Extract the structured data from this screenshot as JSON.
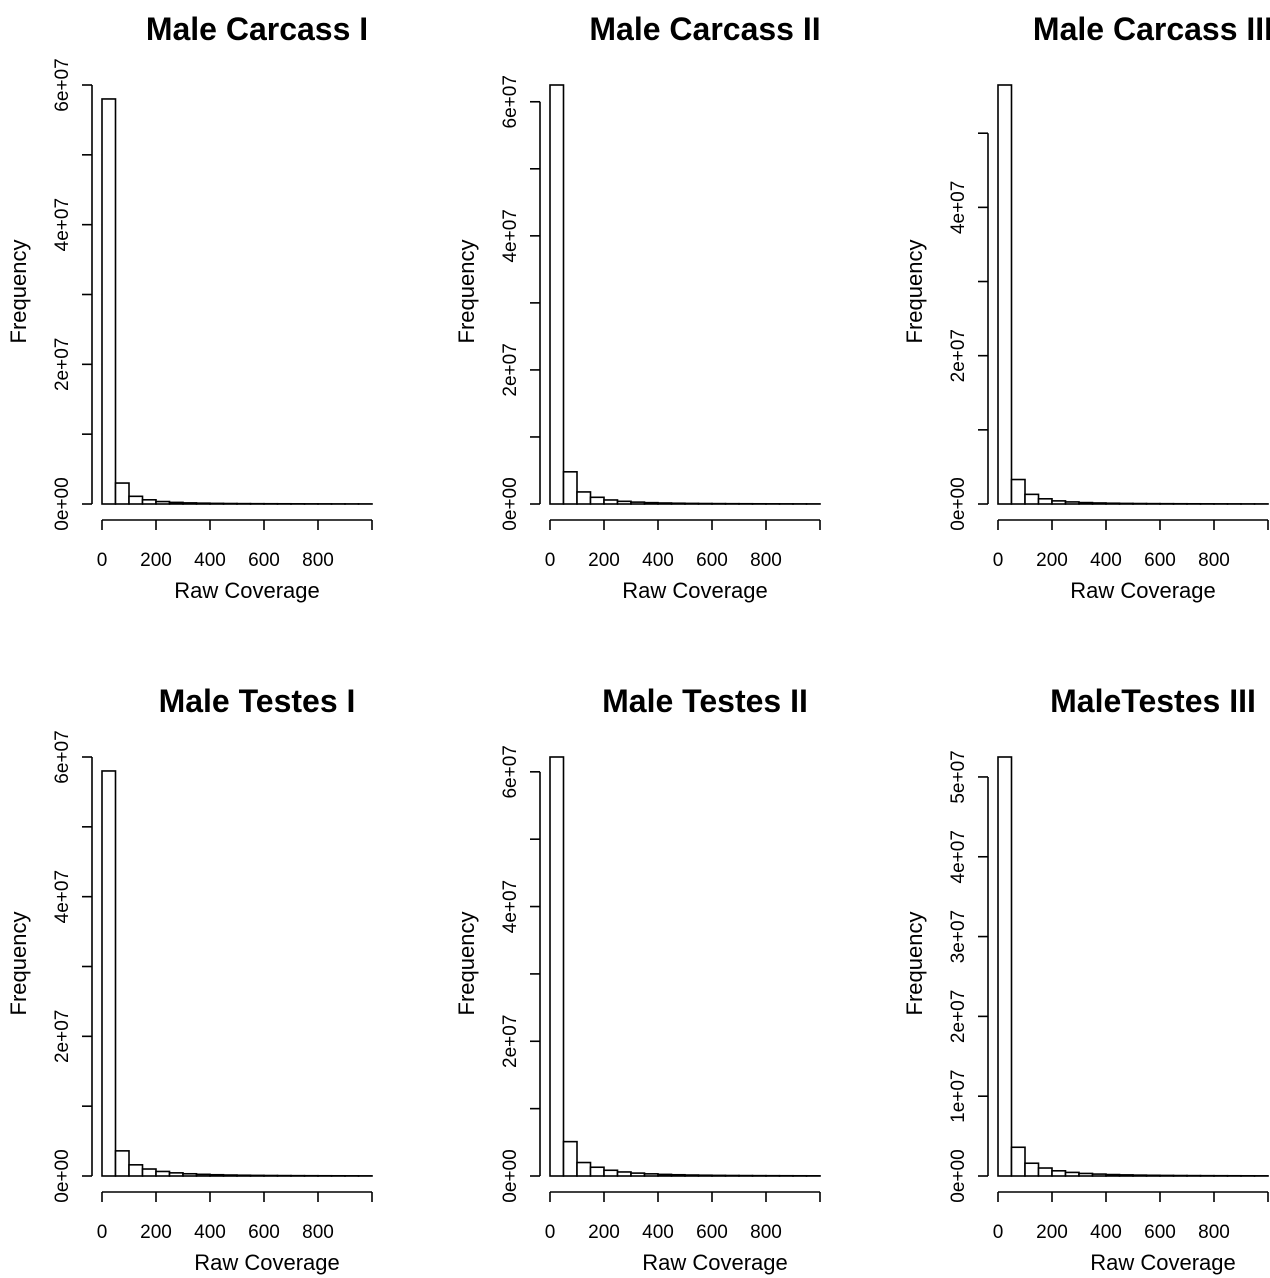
{
  "chart_data": [
    {
      "type": "bar",
      "title": "Male Carcass I",
      "xlabel": "Raw Coverage",
      "ylabel": "Frequency",
      "xlim": [
        0,
        1000
      ],
      "ylim": [
        0,
        60000000
      ],
      "xticks": [
        0,
        200,
        400,
        600,
        800
      ],
      "xtick_labels": [
        "0",
        "200",
        "400",
        "600",
        "800"
      ],
      "yticks": [
        0,
        10000000,
        20000000,
        30000000,
        40000000,
        50000000,
        60000000
      ],
      "ytick_labels": [
        "0e+00",
        "",
        "2e+07",
        "",
        "4e+07",
        "",
        "6e+07"
      ],
      "bin_width": 50,
      "values": [
        58000000,
        3000000,
        1100000,
        600000,
        350000,
        230000,
        160000,
        120000,
        90000,
        70000,
        55000,
        45000,
        38000,
        32000,
        27000,
        23000,
        20000,
        17000,
        15000,
        13000
      ]
    },
    {
      "type": "bar",
      "title": "Male Carcass II",
      "xlabel": "Raw Coverage",
      "ylabel": "Frequency",
      "xlim": [
        0,
        1000
      ],
      "ylim": [
        0,
        60000000
      ],
      "xticks": [
        0,
        200,
        400,
        600,
        800
      ],
      "xtick_labels": [
        "0",
        "200",
        "400",
        "600",
        "800"
      ],
      "yticks": [
        0,
        10000000,
        20000000,
        30000000,
        40000000,
        50000000,
        60000000
      ],
      "ytick_labels": [
        "0e+00",
        "",
        "2e+07",
        "",
        "4e+07",
        "",
        "6e+07"
      ],
      "bin_width": 50,
      "values": [
        62500000,
        4800000,
        1800000,
        1000000,
        600000,
        400000,
        280000,
        200000,
        150000,
        115000,
        90000,
        72000,
        58000,
        47000,
        39000,
        32000,
        27000,
        23000,
        20000,
        17000
      ]
    },
    {
      "type": "bar",
      "title": "Male Carcass III",
      "xlabel": "Raw Coverage",
      "ylabel": "Frequency",
      "xlim": [
        0,
        1000
      ],
      "ylim": [
        0,
        50000000
      ],
      "xticks": [
        0,
        200,
        400,
        600,
        800
      ],
      "xtick_labels": [
        "0",
        "200",
        "400",
        "600",
        "800"
      ],
      "yticks": [
        0,
        10000000,
        20000000,
        30000000,
        40000000,
        50000000
      ],
      "ytick_labels": [
        "0e+00",
        "",
        "2e+07",
        "",
        "4e+07",
        ""
      ],
      "bin_width": 50,
      "values": [
        56500000,
        3300000,
        1300000,
        700000,
        420000,
        280000,
        190000,
        140000,
        105000,
        80000,
        63000,
        51000,
        42000,
        35000,
        29000,
        25000,
        21000,
        18000,
        16000,
        14000
      ]
    },
    {
      "type": "bar",
      "title": "Male Testes I",
      "xlabel": "Raw Coverage",
      "ylabel": "Frequency",
      "xlim": [
        0,
        1000
      ],
      "ylim": [
        0,
        60000000
      ],
      "xticks": [
        0,
        200,
        400,
        600,
        800
      ],
      "xtick_labels": [
        "0",
        "200",
        "400",
        "600",
        "800"
      ],
      "yticks": [
        0,
        10000000,
        20000000,
        30000000,
        40000000,
        50000000,
        60000000
      ],
      "ytick_labels": [
        "0e+00",
        "",
        "2e+07",
        "",
        "4e+07",
        "",
        "6e+07"
      ],
      "bin_width": 50,
      "values": [
        58000000,
        3600000,
        1600000,
        1000000,
        650000,
        450000,
        320000,
        240000,
        180000,
        140000,
        110000,
        88000,
        72000,
        59000,
        49000,
        41000,
        35000,
        30000,
        26000,
        22000
      ]
    },
    {
      "type": "bar",
      "title": "Male Testes II",
      "xlabel": "Raw Coverage",
      "ylabel": "Frequency",
      "xlim": [
        0,
        1000
      ],
      "ylim": [
        0,
        60000000
      ],
      "xticks": [
        0,
        200,
        400,
        600,
        800
      ],
      "xtick_labels": [
        "0",
        "200",
        "400",
        "600",
        "800"
      ],
      "yticks": [
        0,
        10000000,
        20000000,
        30000000,
        40000000,
        50000000,
        60000000
      ],
      "ytick_labels": [
        "0e+00",
        "",
        "2e+07",
        "",
        "4e+07",
        "",
        "6e+07"
      ],
      "bin_width": 50,
      "values": [
        62200000,
        5100000,
        2000000,
        1300000,
        850000,
        600000,
        430000,
        320000,
        240000,
        185000,
        145000,
        115000,
        93000,
        76000,
        63000,
        53000,
        45000,
        38000,
        33000,
        28000
      ]
    },
    {
      "type": "bar",
      "title": "MaleTestes III",
      "xlabel": "Raw Coverage",
      "ylabel": "Frequency",
      "xlim": [
        0,
        1000
      ],
      "ylim": [
        0,
        50000000
      ],
      "xticks": [
        0,
        200,
        400,
        600,
        800
      ],
      "xtick_labels": [
        "0",
        "200",
        "400",
        "600",
        "800"
      ],
      "yticks": [
        0,
        10000000,
        20000000,
        30000000,
        40000000,
        50000000
      ],
      "ytick_labels": [
        "0e+00",
        "1e+07",
        "2e+07",
        "3e+07",
        "4e+07",
        "5e+07"
      ],
      "bin_width": 50,
      "values": [
        52500000,
        3600000,
        1600000,
        1000000,
        650000,
        450000,
        320000,
        240000,
        180000,
        140000,
        110000,
        88000,
        72000,
        59000,
        49000,
        41000,
        35000,
        30000,
        26000,
        22000
      ]
    }
  ]
}
